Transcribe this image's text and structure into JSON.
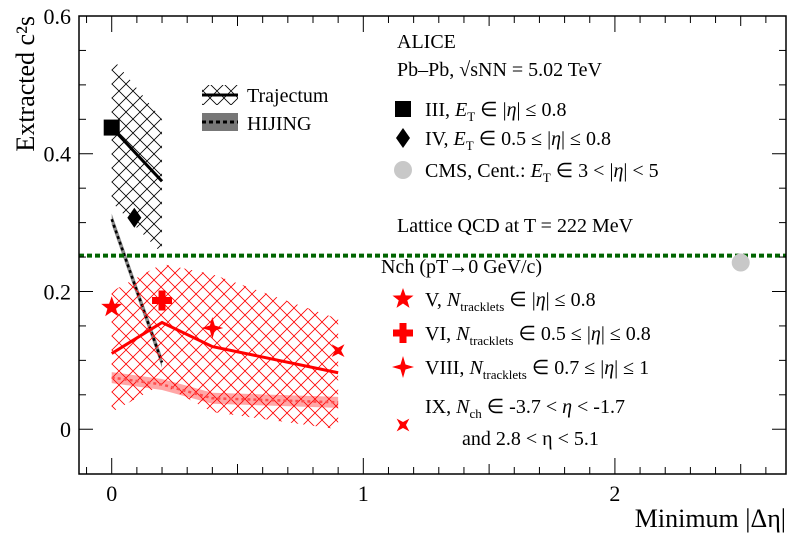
{
  "chart_data": {
    "type": "scatter",
    "xlabel": "Minimum |Δη|",
    "ylabel": "Extracted c²s",
    "xlim": [
      -0.13,
      2.68
    ],
    "ylim": [
      -0.065,
      0.6
    ],
    "x_ticks": [
      "0",
      "1",
      "2"
    ],
    "y_ticks": [
      "0",
      "0.2",
      "0.4",
      "0.6"
    ],
    "header": {
      "experiment": "ALICE",
      "system": "Pb–Pb, √sNN = 5.02 TeV",
      "lattice_label": "Lattice QCD at T = 222 MeV",
      "nch_group_label": "Nch (pT→0 GeV/c)"
    },
    "lattice_qcd": {
      "name": "Lattice QCD at T = 222 MeV",
      "value": 0.252,
      "color": "#006400"
    },
    "series": [
      {
        "name": "III, ET ∈ |η| ≤ 0.8",
        "marker": "square",
        "color": "#000000",
        "points": [
          [
            0.0,
            0.438
          ]
        ],
        "xerr": 0.03
      },
      {
        "name": "IV, ET ∈ 0.5 ≤ |η| ≤ 0.8",
        "marker": "diamond",
        "color": "#000000",
        "points": [
          [
            0.09,
            0.307
          ]
        ]
      },
      {
        "name": "CMS, Cent.: ET ∈ 3 < |η| < 5",
        "marker": "circle",
        "color": "#c8c8c8",
        "points": [
          [
            2.5,
            0.242
          ]
        ]
      },
      {
        "name": "V, Ntracklets ∈ |η| ≤ 0.8",
        "marker": "star",
        "color": "#ff0000",
        "points": [
          [
            0.0,
            0.177
          ]
        ]
      },
      {
        "name": "VI, Ntracklets ∈ 0.5 ≤ |η| ≤ 0.8",
        "marker": "cross",
        "color": "#ff0000",
        "points": [
          [
            0.2,
            0.187
          ]
        ]
      },
      {
        "name": "VIII, Ntracklets ∈ 0.7 ≤ |η| ≤ 1",
        "marker": "star4",
        "color": "#ff0000",
        "points": [
          [
            0.4,
            0.147
          ]
        ]
      },
      {
        "name": "IX, Nch ∈ -3.7 < η < -1.7 and 2.8 < η < 5.1",
        "marker": "x",
        "color": "#ff0000",
        "points": [
          [
            0.9,
            0.114
          ]
        ]
      }
    ],
    "models": [
      {
        "name": "Trajectum",
        "set": "ET",
        "color": "#000000",
        "x": [
          0.0,
          0.2
        ],
        "y": [
          0.438,
          0.36
        ],
        "band_top": [
          0.54,
          0.45
        ],
        "band_bottom": [
          0.33,
          0.255
        ]
      },
      {
        "name": "HIJING",
        "set": "ET",
        "color": "#000000",
        "x": [
          0.0,
          0.2
        ],
        "y": [
          0.305,
          0.097
        ],
        "width": 0.008
      },
      {
        "name": "Trajectum",
        "set": "Nch",
        "color": "#ff0000",
        "x": [
          0.0,
          0.2,
          0.4,
          0.9
        ],
        "y": [
          0.11,
          0.155,
          0.12,
          0.082
        ],
        "band_top": [
          0.2,
          0.24,
          0.225,
          0.16
        ],
        "band_bottom": [
          0.025,
          0.065,
          0.025,
          0.0
        ]
      },
      {
        "name": "HIJING",
        "set": "Nch",
        "color": "#ff0000",
        "x": [
          0.0,
          0.2,
          0.4,
          0.9
        ],
        "y": [
          0.075,
          0.065,
          0.045,
          0.039
        ],
        "width": 0.008
      }
    ],
    "legend_title_line2": "and 2.8 < η < 5.1"
  }
}
